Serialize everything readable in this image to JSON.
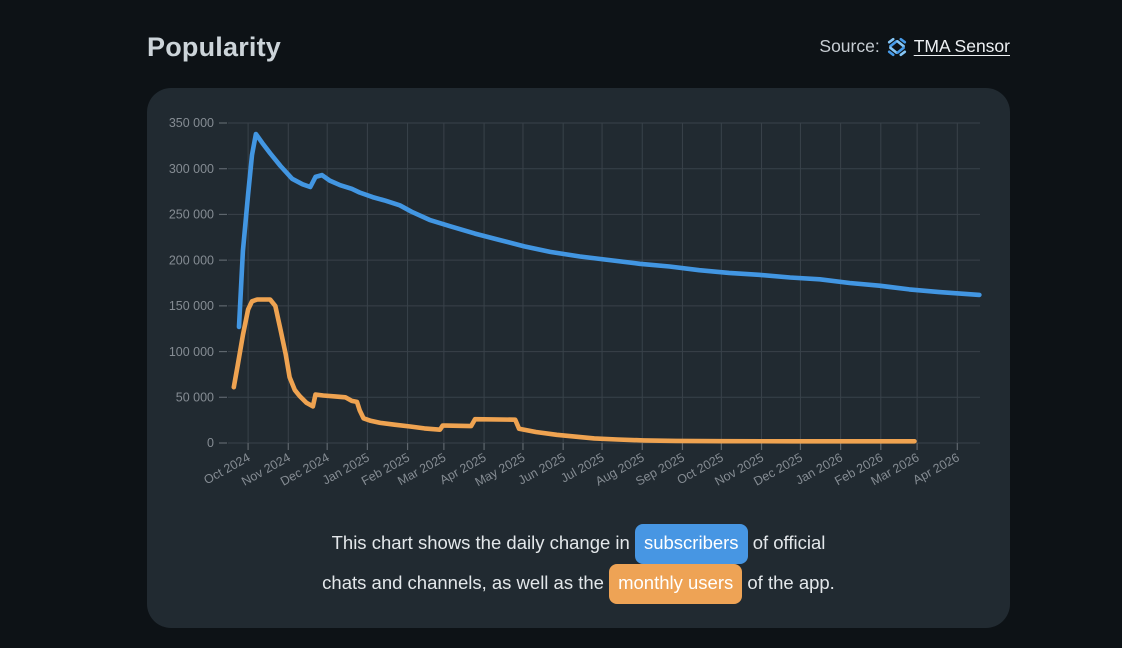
{
  "header": {
    "title": "Popularity",
    "source_label": "Source:",
    "source_link": "TMA Sensor",
    "source_icon": "tma-sensor-logo"
  },
  "caption": {
    "line1_before": "This chart shows the daily change in ",
    "badge_subscribers": "subscribers",
    "line1_after": " of official",
    "line2_before": "chats and channels, as well as the ",
    "badge_monthly_users": "monthly users",
    "line2_after": " of the app."
  },
  "colors": {
    "page_bg": "#0d1216",
    "card_bg": "#212a31",
    "grid": "#39424a",
    "tick": "#5e666d",
    "axis_text": "#858c93",
    "subscribers": "#4296e2",
    "monthly_users": "#efa351",
    "logo_light": "#85c6f6",
    "logo_dark": "#469ae8"
  },
  "chart_data": {
    "type": "line",
    "title": "Popularity",
    "xlabel": "",
    "ylabel": "",
    "grid": true,
    "legend_position": "none",
    "x_unit": "days since 2024-10-01",
    "xlim_days": [
      -15.5,
      564.5
    ],
    "ylim": [
      0,
      350000
    ],
    "y_ticks": [
      {
        "label": "0",
        "value": 0
      },
      {
        "label": "50 000",
        "value": 50000
      },
      {
        "label": "100 000",
        "value": 100000
      },
      {
        "label": "150 000",
        "value": 150000
      },
      {
        "label": "200 000",
        "value": 200000
      },
      {
        "label": "250 000",
        "value": 250000
      },
      {
        "label": "300 000",
        "value": 300000
      },
      {
        "label": "350 000",
        "value": 350000
      }
    ],
    "x_ticks": [
      {
        "label": "Oct 2024",
        "day": 0
      },
      {
        "label": "Nov 2024",
        "day": 31
      },
      {
        "label": "Dec 2024",
        "day": 61
      },
      {
        "label": "Jan 2025",
        "day": 92
      },
      {
        "label": "Feb 2025",
        "day": 123
      },
      {
        "label": "Mar 2025",
        "day": 151
      },
      {
        "label": "Apr 2025",
        "day": 182
      },
      {
        "label": "May 2025",
        "day": 212
      },
      {
        "label": "Jun 2025",
        "day": 243
      },
      {
        "label": "Jul 2025",
        "day": 273
      },
      {
        "label": "Aug 2025",
        "day": 304
      },
      {
        "label": "Sep 2025",
        "day": 335
      },
      {
        "label": "Oct 2025",
        "day": 365
      },
      {
        "label": "Nov 2025",
        "day": 396
      },
      {
        "label": "Dec 2025",
        "day": 426
      },
      {
        "label": "Jan 2026",
        "day": 457
      },
      {
        "label": "Feb 2026",
        "day": 488
      },
      {
        "label": "Mar 2026",
        "day": 516
      },
      {
        "label": "Apr 2026",
        "day": 547
      }
    ],
    "series": [
      {
        "name": "monthly users",
        "color": "#efa351",
        "points": [
          [
            -11,
            61000
          ],
          [
            -8,
            85000
          ],
          [
            -4,
            118000
          ],
          [
            0,
            146000
          ],
          [
            3,
            155000
          ],
          [
            7,
            157000
          ],
          [
            17,
            157000
          ],
          [
            21,
            150000
          ],
          [
            25,
            124000
          ],
          [
            29,
            97000
          ],
          [
            32,
            72000
          ],
          [
            36,
            58000
          ],
          [
            40,
            51000
          ],
          [
            45,
            44000
          ],
          [
            50,
            40000
          ],
          [
            52,
            53000
          ],
          [
            58,
            52000
          ],
          [
            67,
            51000
          ],
          [
            75,
            50000
          ],
          [
            80,
            46000
          ],
          [
            84,
            45000
          ],
          [
            86,
            36000
          ],
          [
            89,
            27000
          ],
          [
            94,
            24500
          ],
          [
            102,
            22000
          ],
          [
            113,
            20000
          ],
          [
            125,
            18000
          ],
          [
            136,
            16000
          ],
          [
            148,
            14500
          ],
          [
            150,
            19000
          ],
          [
            153,
            19000
          ],
          [
            172,
            18500
          ],
          [
            175,
            26000
          ],
          [
            206,
            25500
          ],
          [
            209,
            15500
          ],
          [
            222,
            12000
          ],
          [
            238,
            9000
          ],
          [
            252,
            7000
          ],
          [
            267,
            5000
          ],
          [
            285,
            3800
          ],
          [
            305,
            2800
          ],
          [
            330,
            2300
          ],
          [
            365,
            2000
          ],
          [
            420,
            1900
          ],
          [
            470,
            1900
          ],
          [
            514,
            1900
          ]
        ]
      },
      {
        "name": "subscribers",
        "color": "#4296e2",
        "points": [
          [
            -7,
            127000
          ],
          [
            -4,
            210000
          ],
          [
            0,
            272000
          ],
          [
            3,
            315000
          ],
          [
            6,
            338000
          ],
          [
            11,
            328000
          ],
          [
            17,
            317000
          ],
          [
            25,
            303000
          ],
          [
            34,
            289000
          ],
          [
            42,
            283000
          ],
          [
            48,
            280000
          ],
          [
            52,
            291000
          ],
          [
            57,
            293000
          ],
          [
            63,
            287000
          ],
          [
            71,
            282000
          ],
          [
            80,
            278000
          ],
          [
            86,
            274000
          ],
          [
            96,
            269000
          ],
          [
            106,
            265000
          ],
          [
            117,
            260000
          ],
          [
            126,
            253000
          ],
          [
            140,
            244000
          ],
          [
            156,
            237000
          ],
          [
            175,
            229000
          ],
          [
            194,
            222000
          ],
          [
            213,
            215000
          ],
          [
            233,
            209000
          ],
          [
            256,
            204000
          ],
          [
            279,
            200000
          ],
          [
            302,
            196000
          ],
          [
            325,
            193000
          ],
          [
            348,
            189000
          ],
          [
            371,
            186000
          ],
          [
            394,
            184000
          ],
          [
            418,
            181000
          ],
          [
            441,
            179000
          ],
          [
            464,
            175000
          ],
          [
            487,
            172000
          ],
          [
            510,
            168000
          ],
          [
            533,
            165000
          ],
          [
            564,
            162000
          ]
        ]
      }
    ]
  }
}
